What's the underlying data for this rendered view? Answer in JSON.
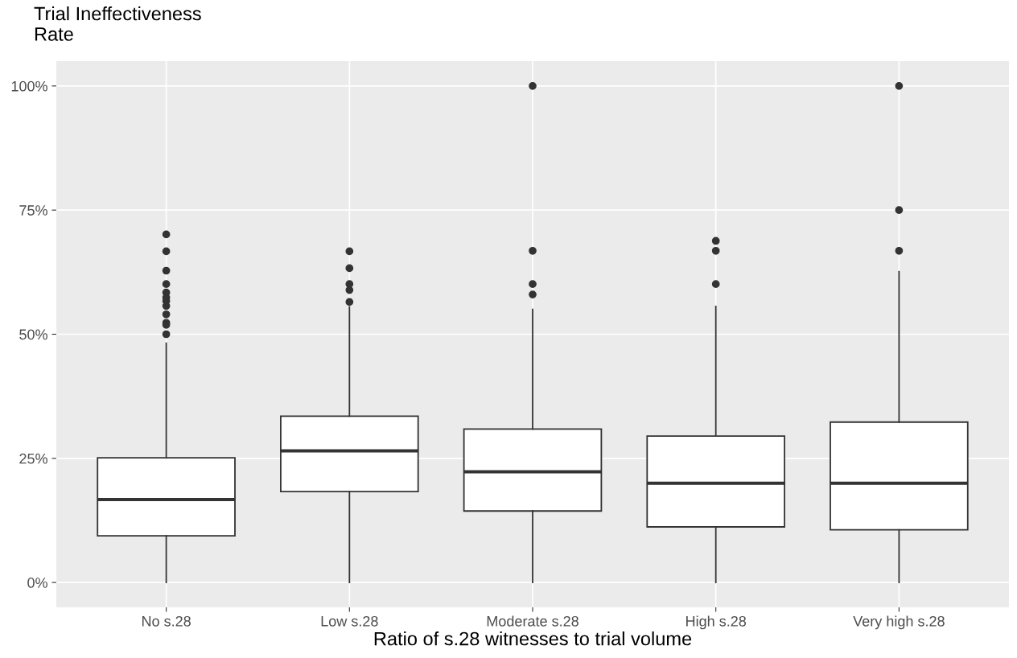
{
  "chart_data": {
    "type": "box",
    "ylabel": "Trial Ineffectiveness\nRate",
    "xlabel": "Ratio of s.28 witnesses to trial volume",
    "categories": [
      "No s.28",
      "Low s.28",
      "Moderate s.28",
      "High s.28",
      "Very high s.28"
    ],
    "boxes": [
      {
        "low": 0,
        "q1": 9.4,
        "median": 16.7,
        "q3": 25.1,
        "high": 48.2,
        "outliers": [
          70.1,
          66.7,
          62.8,
          60.1,
          58.4,
          57.4,
          56.7,
          55.7,
          54.0,
          52.3,
          51.9,
          50.0
        ]
      },
      {
        "low": 0,
        "q1": 18.3,
        "median": 26.5,
        "q3": 33.5,
        "high": 55.5,
        "outliers": [
          66.7,
          63.3,
          60.1,
          58.9,
          56.5
        ]
      },
      {
        "low": 0,
        "q1": 14.4,
        "median": 22.3,
        "q3": 30.9,
        "high": 55.0,
        "outliers": [
          100,
          66.8,
          60.1,
          58.0
        ]
      },
      {
        "low": 0,
        "q1": 11.2,
        "median": 20.0,
        "q3": 29.5,
        "high": 55.6,
        "outliers": [
          68.8,
          66.8,
          60.1
        ]
      },
      {
        "low": 0,
        "q1": 10.6,
        "median": 20.0,
        "q3": 32.3,
        "high": 62.6,
        "outliers": [
          100,
          75.0,
          66.8
        ]
      }
    ],
    "ylim": [
      -5,
      105
    ],
    "yticks": [
      {
        "value": 0,
        "label": "0%"
      },
      {
        "value": 25,
        "label": "25%"
      },
      {
        "value": 50,
        "label": "50%"
      },
      {
        "value": 75,
        "label": "75%"
      },
      {
        "value": 100,
        "label": "100%"
      }
    ],
    "grid": true
  }
}
